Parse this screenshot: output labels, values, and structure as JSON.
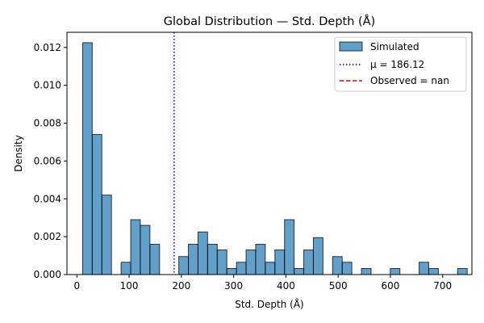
{
  "chart_data": {
    "type": "bar",
    "title": "Global Distribution — Std. Depth (Å)",
    "xlabel": "Std. Depth (Å)",
    "ylabel": "Density",
    "xlim": [
      -19,
      756
    ],
    "ylim": [
      0,
      0.0128
    ],
    "xticks": [
      0,
      100,
      200,
      300,
      400,
      500,
      600,
      700
    ],
    "yticks": [
      0.0,
      0.002,
      0.004,
      0.006,
      0.008,
      0.01,
      0.012
    ],
    "ytick_labels": [
      "0.000",
      "0.002",
      "0.004",
      "0.006",
      "0.008",
      "0.010",
      "0.012"
    ],
    "legend_position": "top-right",
    "histogram": {
      "name": "Simulated",
      "color": "#1f77b4",
      "bin_edges": [
        11,
        29.4,
        47.8,
        66.2,
        84.6,
        103,
        121.4,
        139.8,
        158.2,
        176.6,
        195,
        213.4,
        231.8,
        250.2,
        268.6,
        287,
        305.4,
        323.8,
        342.2,
        360.6,
        379,
        397.4,
        415.8,
        434.2,
        452.6,
        471,
        489.4,
        507.8,
        526.2,
        544.6,
        563,
        581.4,
        599.8,
        618.2,
        636.6,
        655,
        673.4,
        691.8,
        710.2,
        728.6,
        747
      ],
      "densities": [
        0.01225,
        0.0074,
        0.0042,
        0,
        0.00065,
        0.0029,
        0.0026,
        0.0016,
        0,
        0,
        0.00095,
        0.0016,
        0.00225,
        0.0016,
        0.0013,
        0.00032,
        0.00065,
        0.0013,
        0.0016,
        0.00065,
        0.0013,
        0.0029,
        0.00032,
        0.0013,
        0.00195,
        0,
        0.00095,
        0.00065,
        0,
        0.00032,
        0,
        0,
        0.00032,
        0,
        0,
        0.00065,
        0.00032,
        0,
        0,
        0.00032
      ]
    },
    "lines": [
      {
        "label": "μ = 186.12",
        "x": 186.12,
        "color": "#0000cc",
        "style": "dotted"
      },
      {
        "label": "Observed = nan",
        "x": null,
        "color": "#dd0000",
        "style": "dashed"
      }
    ]
  }
}
